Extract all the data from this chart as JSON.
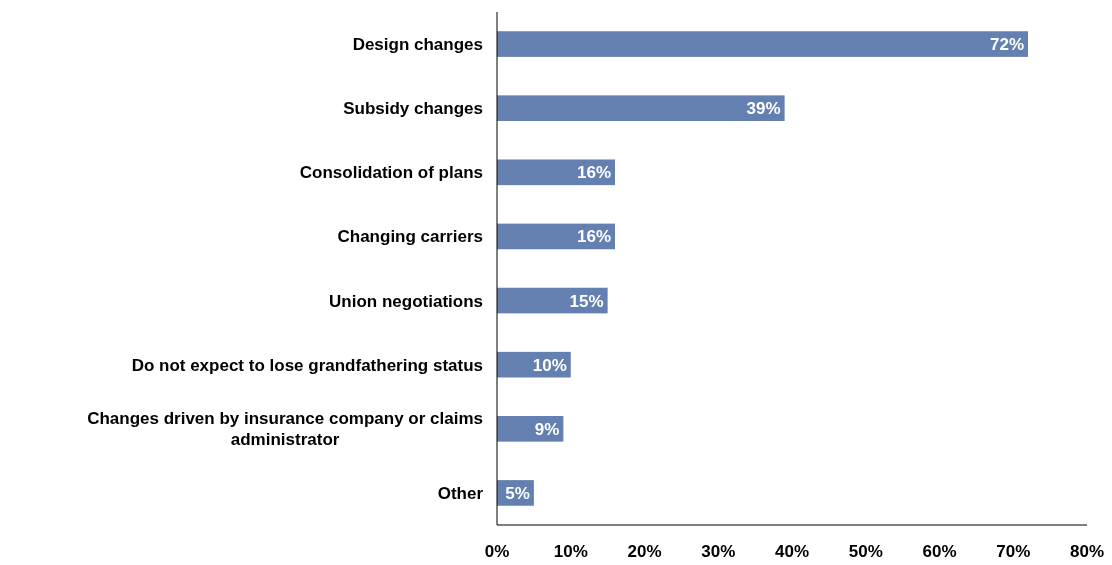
{
  "chart_data": {
    "type": "bar",
    "orientation": "horizontal",
    "categories": [
      "Design changes",
      "Subsidy changes",
      "Consolidation of plans",
      "Changing carriers",
      "Union negotiations",
      "Do not expect to lose grandfathering status",
      "Changes driven by insurance company or claims administrator",
      "Other"
    ],
    "values": [
      72,
      39,
      16,
      16,
      15,
      10,
      9,
      5
    ],
    "value_labels": [
      "72%",
      "39%",
      "16%",
      "16%",
      "15%",
      "10%",
      "9%",
      "5%"
    ],
    "color": "#6480b0",
    "xlim": [
      0,
      80
    ],
    "xticks": [
      {
        "value": 0,
        "label": "0%"
      },
      {
        "value": 10,
        "label": "10%"
      },
      {
        "value": 20,
        "label": "20%"
      },
      {
        "value": 30,
        "label": "30%"
      },
      {
        "value": 40,
        "label": "40%"
      },
      {
        "value": 50,
        "label": "50%"
      },
      {
        "value": 60,
        "label": "60%"
      },
      {
        "value": 70,
        "label": "70%"
      },
      {
        "value": 80,
        "label": "80%"
      }
    ]
  }
}
